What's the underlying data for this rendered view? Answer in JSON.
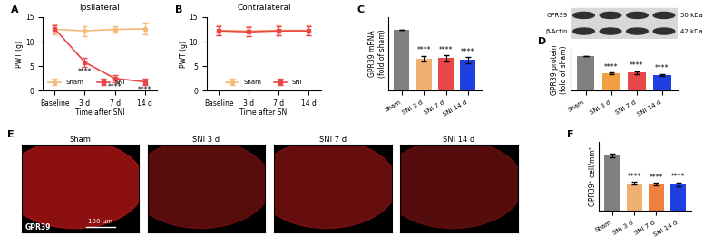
{
  "chart_data": [
    {
      "panel": "A",
      "type": "line",
      "title": "Ipsilateral",
      "x_label": "Time after SNI",
      "y_label": "PWT (g)",
      "categories": [
        "Baseline",
        "3 d",
        "7 d",
        "14 d"
      ],
      "series": [
        {
          "name": "Sham",
          "color": "#f5b877",
          "marker": "o",
          "values": [
            12.5,
            12.2,
            12.5,
            12.6
          ],
          "errors": [
            1.0,
            1.0,
            0.6,
            1.2
          ]
        },
        {
          "name": "SNI",
          "color": "#e8474a",
          "marker": "s",
          "values": [
            12.6,
            5.8,
            2.5,
            1.8
          ],
          "errors": [
            0.8,
            0.9,
            0.7,
            0.6
          ],
          "significance": [
            null,
            "****",
            "****",
            "****"
          ]
        }
      ],
      "ylim": [
        0,
        15
      ],
      "yticks": [
        0,
        5,
        10,
        15
      ],
      "legend": "lower left"
    },
    {
      "panel": "B",
      "type": "line",
      "title": "Contralateral",
      "x_label": "Time after SNI",
      "y_label": "PWT (g)",
      "categories": [
        "Baseline",
        "3 d",
        "7 d",
        "14 d"
      ],
      "series": [
        {
          "name": "Sham",
          "color": "#f5b877",
          "marker": "o",
          "values": [
            12.3,
            12.2,
            12.3,
            12.3
          ],
          "errors": [
            1.0,
            1.0,
            1.0,
            1.0
          ]
        },
        {
          "name": "SNI",
          "color": "#e8474a",
          "marker": "s",
          "values": [
            12.2,
            12.0,
            12.2,
            12.2
          ],
          "errors": [
            0.9,
            0.9,
            0.9,
            0.9
          ]
        }
      ],
      "ylim": [
        0,
        15
      ],
      "yticks": [
        0,
        5,
        10,
        15
      ],
      "legend": "lower center"
    },
    {
      "panel": "C",
      "type": "bar",
      "y_label": "GPR39 mRNA\n(fold of sham)",
      "categories": [
        "Sham",
        "SNI 3 d",
        "SNI 7 d",
        "SNI 14 d"
      ],
      "values": [
        10,
        5.2,
        5.3,
        5.0
      ],
      "errors": [
        0,
        0.5,
        0.5,
        0.5
      ],
      "colors": [
        "#808080",
        "#f0b070",
        "#e8474a",
        "#1f3fe0"
      ],
      "significance": [
        null,
        "****",
        "****",
        "****"
      ],
      "ylim": [
        0,
        12
      ],
      "tick_labels": "x"
    },
    {
      "panel": "D",
      "type": "bar",
      "y_label": "GPR39 protein\n(fold of sham)",
      "categories": [
        "Sham",
        "SNI 3 d",
        "SNI 7 d",
        "SNI 14 d"
      ],
      "values": [
        1.0,
        0.5,
        0.52,
        0.45
      ],
      "errors": [
        0,
        0.03,
        0.04,
        0.03
      ],
      "colors": [
        "#808080",
        "#f0a040",
        "#e8474a",
        "#1f3fe0"
      ],
      "significance": [
        null,
        "****",
        "****",
        "****"
      ],
      "ylim": [
        0,
        1.2
      ],
      "tick_labels": "x"
    },
    {
      "panel": "F",
      "type": "bar",
      "y_label": "GPR39⁺ cell/mm²",
      "categories": [
        "Sham",
        "SNI 3 d",
        "SNI 7 d",
        "SNI 14 d"
      ],
      "values": [
        120,
        60,
        58,
        58
      ],
      "errors": [
        4,
        3,
        3,
        4
      ],
      "colors": [
        "#808080",
        "#f0b070",
        "#f08040",
        "#1f3fe0"
      ],
      "significance": [
        null,
        "****",
        "****",
        "****"
      ],
      "ylim": [
        0,
        150
      ],
      "tick_labels": "x"
    }
  ],
  "blot": {
    "panel": "D",
    "bands": [
      {
        "label": "GPR39",
        "size": "50 kDa"
      },
      {
        "label": "β-Actin",
        "size": "42 kDa"
      }
    ]
  },
  "micrographs": {
    "panel": "E",
    "labels": [
      "Sham",
      "SNI 3 d",
      "SNI 7 d",
      "SNI 14 d"
    ],
    "stain": "GPR39",
    "scale_bar": "100 μm"
  }
}
